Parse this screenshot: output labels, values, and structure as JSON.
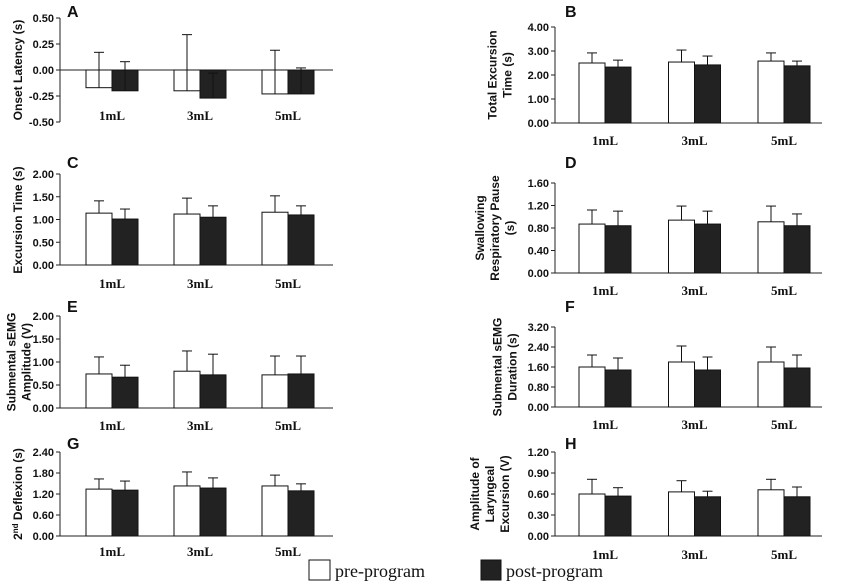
{
  "legend": {
    "items": [
      {
        "label": "pre-program",
        "color": "#ffffff"
      },
      {
        "label": "post-program",
        "color": "#222222"
      }
    ]
  },
  "chart_data": [
    {
      "panel": "A",
      "type": "bar",
      "ylabel": [
        "Onset Latency (s)"
      ],
      "categories": [
        "1mL",
        "3mL",
        "5mL"
      ],
      "ylim": [
        -0.5,
        0.5
      ],
      "yticks": [
        "0.50",
        "0.25",
        "0.00",
        "-0.25",
        "-0.50"
      ],
      "series": [
        {
          "name": "pre-program",
          "values": [
            -0.17,
            -0.2,
            -0.23
          ],
          "errors": [
            0.34,
            0.54,
            0.42
          ]
        },
        {
          "name": "post-program",
          "values": [
            -0.2,
            -0.27,
            -0.23
          ],
          "errors": [
            0.28,
            0.24,
            0.25
          ]
        }
      ]
    },
    {
      "panel": "B",
      "type": "bar",
      "ylabel": [
        "Total Excursion",
        "Time (s)"
      ],
      "categories": [
        "1mL",
        "3mL",
        "5mL"
      ],
      "ylim": [
        0,
        4
      ],
      "yticks": [
        "4.00",
        "3.00",
        "2.00",
        "1.00",
        "0.00"
      ],
      "series": [
        {
          "name": "pre-program",
          "values": [
            2.5,
            2.54,
            2.58
          ],
          "errors": [
            0.42,
            0.5,
            0.34
          ]
        },
        {
          "name": "post-program",
          "values": [
            2.33,
            2.42,
            2.38
          ],
          "errors": [
            0.29,
            0.37,
            0.2
          ]
        }
      ]
    },
    {
      "panel": "C",
      "type": "bar",
      "ylabel": [
        "Excursion Time (s)"
      ],
      "categories": [
        "1mL",
        "3mL",
        "5mL"
      ],
      "ylim": [
        0,
        2
      ],
      "yticks": [
        "2.00",
        "1.50",
        "1.00",
        "0.50",
        "0.00"
      ],
      "series": [
        {
          "name": "pre-program",
          "values": [
            1.14,
            1.12,
            1.16
          ],
          "errors": [
            0.27,
            0.35,
            0.36
          ]
        },
        {
          "name": "post-program",
          "values": [
            1.01,
            1.05,
            1.1
          ],
          "errors": [
            0.22,
            0.25,
            0.2
          ]
        }
      ]
    },
    {
      "panel": "D",
      "type": "bar",
      "ylabel": [
        "Swallowing",
        "Respiratory Pause",
        "(s)"
      ],
      "categories": [
        "1mL",
        "3mL",
        "5mL"
      ],
      "ylim": [
        0,
        1.6
      ],
      "yticks": [
        "1.60",
        "1.20",
        "0.80",
        "0.40",
        "0.00"
      ],
      "series": [
        {
          "name": "pre-program",
          "values": [
            0.87,
            0.94,
            0.91
          ],
          "errors": [
            0.25,
            0.25,
            0.28
          ]
        },
        {
          "name": "post-program",
          "values": [
            0.84,
            0.87,
            0.84
          ],
          "errors": [
            0.26,
            0.23,
            0.21
          ]
        }
      ]
    },
    {
      "panel": "E",
      "type": "bar",
      "ylabel": [
        "Submental sEMG",
        "Amplitude (V)"
      ],
      "categories": [
        "1mL",
        "3mL",
        "5mL"
      ],
      "ylim": [
        0,
        2
      ],
      "yticks": [
        "2.00",
        "1.50",
        "1.00",
        "0.50",
        "0.00"
      ],
      "series": [
        {
          "name": "pre-program",
          "values": [
            0.74,
            0.8,
            0.72
          ],
          "errors": [
            0.37,
            0.44,
            0.41
          ]
        },
        {
          "name": "post-program",
          "values": [
            0.67,
            0.72,
            0.74
          ],
          "errors": [
            0.26,
            0.45,
            0.39
          ]
        }
      ]
    },
    {
      "panel": "F",
      "type": "bar",
      "ylabel": [
        "Submental sEMG",
        "Duration (s)"
      ],
      "categories": [
        "1mL",
        "3mL",
        "5mL"
      ],
      "ylim": [
        0,
        3.2
      ],
      "yticks": [
        "3.20",
        "2.40",
        "1.60",
        "0.80",
        "0.00"
      ],
      "series": [
        {
          "name": "pre-program",
          "values": [
            1.6,
            1.8,
            1.8
          ],
          "errors": [
            0.48,
            0.64,
            0.6
          ]
        },
        {
          "name": "post-program",
          "values": [
            1.48,
            1.48,
            1.56
          ],
          "errors": [
            0.48,
            0.52,
            0.52
          ]
        }
      ]
    },
    {
      "panel": "G",
      "type": "bar",
      "ylabel": [
        "2nd Deflexion (s)"
      ],
      "categories": [
        "1mL",
        "3mL",
        "5mL"
      ],
      "ylim": [
        0,
        2.4
      ],
      "yticks": [
        "2.40",
        "1.80",
        "1.20",
        "0.60",
        "0.00"
      ],
      "series": [
        {
          "name": "pre-program",
          "values": [
            1.34,
            1.43,
            1.43
          ],
          "errors": [
            0.29,
            0.4,
            0.31
          ]
        },
        {
          "name": "post-program",
          "values": [
            1.31,
            1.37,
            1.29
          ],
          "errors": [
            0.26,
            0.29,
            0.2
          ]
        }
      ]
    },
    {
      "panel": "H",
      "type": "bar",
      "ylabel": [
        "Amplitude of",
        "Laryngeal",
        "Excursion (V)"
      ],
      "categories": [
        "1mL",
        "3mL",
        "5mL"
      ],
      "ylim": [
        0,
        1.2
      ],
      "yticks": [
        "1.20",
        "0.90",
        "0.60",
        "0.30",
        "0.00"
      ],
      "series": [
        {
          "name": "pre-program",
          "values": [
            0.6,
            0.63,
            0.66
          ],
          "errors": [
            0.21,
            0.16,
            0.15
          ]
        },
        {
          "name": "post-program",
          "values": [
            0.57,
            0.56,
            0.56
          ],
          "errors": [
            0.12,
            0.08,
            0.14
          ]
        }
      ]
    }
  ]
}
